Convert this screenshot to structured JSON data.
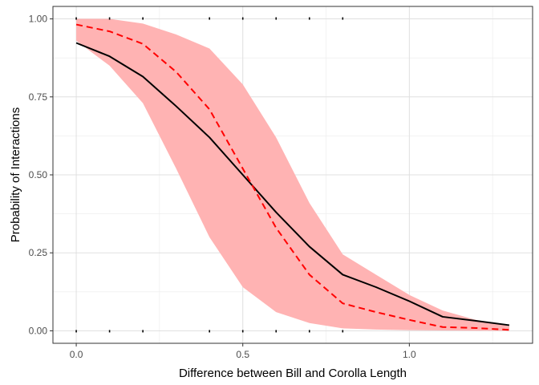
{
  "chart_data": {
    "type": "line",
    "title": "",
    "xlabel": "Difference between Bill and Corolla Length",
    "ylabel": "Probability of Interactions",
    "xlim": [
      -0.07,
      1.37
    ],
    "ylim": [
      -0.04,
      1.04
    ],
    "x_ticks": [
      0.0,
      0.5,
      1.0
    ],
    "x_tick_labels": [
      "0.0",
      "0.5",
      "1.0"
    ],
    "y_ticks": [
      0.0,
      0.25,
      0.5,
      0.75,
      1.0
    ],
    "y_tick_labels": [
      "0.00",
      "0.25",
      "0.50",
      "0.75",
      "1.00"
    ],
    "grid": true,
    "legend": "none",
    "ribbon": {
      "color": "#ffb3b3",
      "x": [
        0.0,
        0.1,
        0.2,
        0.3,
        0.4,
        0.5,
        0.6,
        0.7,
        0.8,
        0.9,
        1.0,
        1.1,
        1.2,
        1.3
      ],
      "lower": [
        0.93,
        0.85,
        0.73,
        0.52,
        0.3,
        0.14,
        0.06,
        0.025,
        0.008,
        0.004,
        0.002,
        0.001,
        0.0005,
        0.0
      ],
      "upper": [
        1.0,
        1.0,
        0.985,
        0.95,
        0.905,
        0.79,
        0.62,
        0.41,
        0.245,
        0.18,
        0.115,
        0.065,
        0.035,
        0.015
      ]
    },
    "series": [
      {
        "color": "#000000",
        "dash": "solid",
        "x": [
          0.0,
          0.1,
          0.2,
          0.3,
          0.4,
          0.5,
          0.6,
          0.7,
          0.8,
          0.9,
          1.0,
          1.1,
          1.2,
          1.3
        ],
        "values": [
          0.923,
          0.88,
          0.815,
          0.72,
          0.62,
          0.5,
          0.38,
          0.27,
          0.18,
          0.14,
          0.095,
          0.045,
          0.032,
          0.018
        ]
      },
      {
        "color": "#ff0000",
        "dash": "dashed",
        "x": [
          0.0,
          0.1,
          0.2,
          0.3,
          0.4,
          0.5,
          0.6,
          0.7,
          0.8,
          0.9,
          1.0,
          1.1,
          1.2,
          1.3
        ],
        "values": [
          0.982,
          0.96,
          0.92,
          0.83,
          0.71,
          0.52,
          0.33,
          0.18,
          0.088,
          0.06,
          0.035,
          0.012,
          0.009,
          0.003
        ]
      }
    ],
    "rug": {
      "color": "#000000",
      "top_x": [
        0.0,
        0.1,
        0.2,
        0.4,
        0.5,
        0.6,
        0.7,
        0.8
      ],
      "bottom_x": [
        0.0,
        0.1,
        0.2,
        0.4,
        0.5,
        0.6,
        0.7,
        0.8
      ]
    }
  }
}
